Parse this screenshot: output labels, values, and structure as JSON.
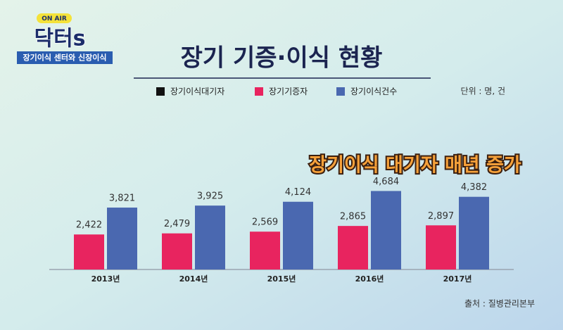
{
  "logo": {
    "badge": "ON AIR",
    "name": "닥터s",
    "subtitle": "장기이식 센터와 신장이식"
  },
  "chart_data": {
    "type": "bar",
    "title": "장기 기증·이식 현황",
    "unit_note": "단위 : 명, 건",
    "annotation": "장기이식 대기자 매년 증가",
    "source": "출처 : 질병관리본부",
    "categories": [
      "2013년",
      "2014년",
      "2015년",
      "2016년",
      "2017년"
    ],
    "series": [
      {
        "name": "장기이식대기자",
        "color": "#111111",
        "values": [
          null,
          null,
          null,
          null,
          null
        ]
      },
      {
        "name": "장기기증자",
        "color": "#e8245f",
        "values": [
          2422,
          2479,
          2569,
          2865,
          2897
        ],
        "value_labels": [
          "2,422",
          "2,479",
          "2,569",
          "2,865",
          "2,897"
        ]
      },
      {
        "name": "장기이식건수",
        "color": "#4a68b0",
        "values": [
          3821,
          3925,
          4124,
          4684,
          4382
        ],
        "value_labels": [
          "3,821",
          "3,925",
          "4,124",
          "4,684",
          "4,382"
        ]
      }
    ],
    "ylim": [
      600,
      7300
    ]
  }
}
